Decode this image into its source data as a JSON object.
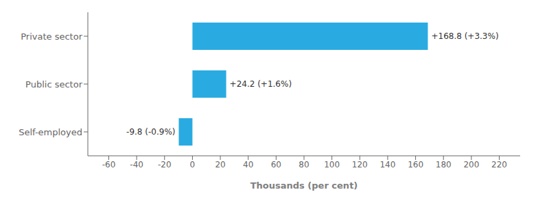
{
  "chart_data": {
    "type": "bar",
    "orientation": "horizontal",
    "categories": [
      "Private sector",
      "Public sector",
      "Self-employed"
    ],
    "values": [
      168.8,
      24.2,
      -9.8
    ],
    "value_labels": [
      "+168.8 (+3.3%)",
      "+24.2 (+1.6%)",
      "-9.8 (-0.9%)"
    ],
    "data_labels": true,
    "color": "#29ABE2",
    "xlabel": "Thousands (per cent)",
    "xlim": [
      -75,
      235
    ],
    "xticks": [
      -60,
      -40,
      -20,
      0,
      20,
      40,
      60,
      80,
      100,
      120,
      140,
      160,
      180,
      200,
      220
    ],
    "grid": false
  }
}
